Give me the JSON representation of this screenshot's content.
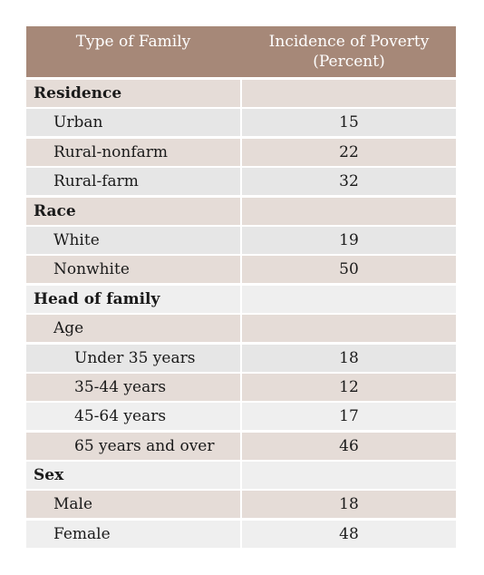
{
  "header": {
    "col1": "Type of Family",
    "col2_line1": "Incidence of Poverty",
    "col2_line2": "(Percent)"
  },
  "rows": [
    {
      "label": "Residence",
      "value": ""
    },
    {
      "label": "Urban",
      "value": "15"
    },
    {
      "label": "Rural-nonfarm",
      "value": "22"
    },
    {
      "label": "Rural-farm",
      "value": "32"
    },
    {
      "label": "Race",
      "value": ""
    },
    {
      "label": "White",
      "value": "19"
    },
    {
      "label": "Nonwhite",
      "value": "50"
    },
    {
      "label": "Head of family",
      "value": ""
    },
    {
      "label": "Age",
      "value": ""
    },
    {
      "label": "Under 35 years",
      "value": "18"
    },
    {
      "label": "35-44 years",
      "value": "12"
    },
    {
      "label": "45-64 years",
      "value": "17"
    },
    {
      "label": "65 years and over",
      "value": "46"
    },
    {
      "label": "Sex",
      "value": ""
    },
    {
      "label": "Male",
      "value": "18"
    },
    {
      "label": "Female",
      "value": "48"
    }
  ]
}
